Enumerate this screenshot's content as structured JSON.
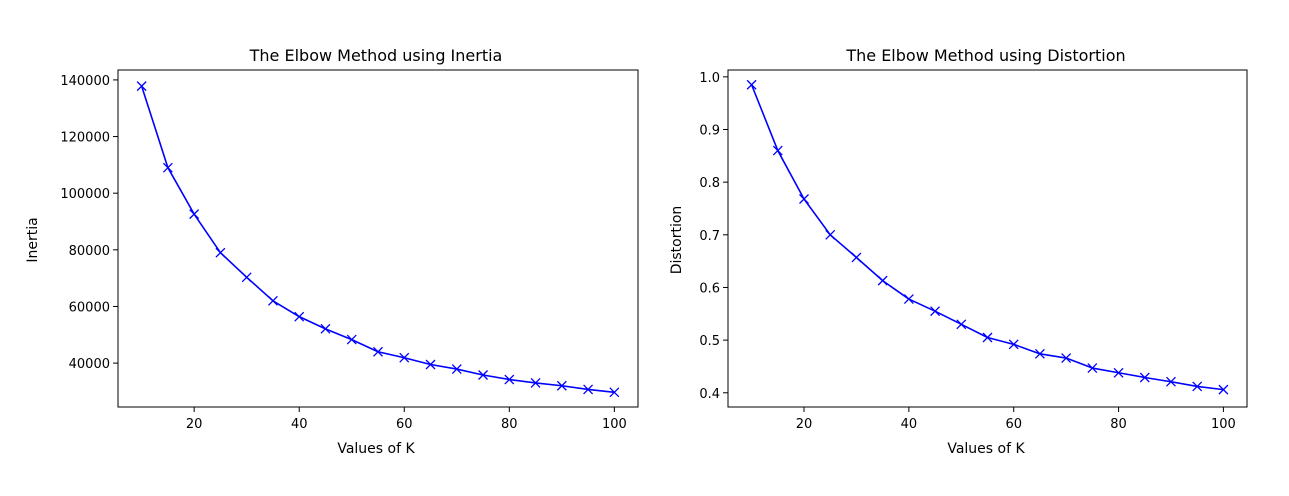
{
  "chart_data": [
    {
      "type": "line",
      "title": "The Elbow Method using Inertia",
      "xlabel": "Values of K",
      "ylabel": "Inertia",
      "xlim": [
        5.5,
        104.5
      ],
      "ylim": [
        24500,
        143500
      ],
      "xticks": [
        20,
        40,
        60,
        80,
        100
      ],
      "yticks": [
        40000,
        60000,
        80000,
        100000,
        120000,
        140000
      ],
      "grid": false,
      "line_color": "#0000ff",
      "marker": "x",
      "x": [
        10,
        15,
        20,
        25,
        30,
        35,
        40,
        45,
        50,
        55,
        60,
        65,
        70,
        75,
        80,
        85,
        90,
        95,
        100
      ],
      "values": [
        137800,
        109000,
        92600,
        79000,
        70300,
        62000,
        56400,
        52100,
        48300,
        44000,
        41900,
        39500,
        37900,
        35800,
        34200,
        33000,
        32000,
        30700,
        29700
      ]
    },
    {
      "type": "line",
      "title": "The Elbow Method using Distortion",
      "xlabel": "Values of K",
      "ylabel": "Distortion",
      "xlim": [
        5.5,
        104.5
      ],
      "ylim": [
        0.373,
        1.013
      ],
      "xticks": [
        20,
        40,
        60,
        80,
        100
      ],
      "yticks": [
        0.4,
        0.5,
        0.6,
        0.7,
        0.8,
        0.9,
        1.0
      ],
      "grid": false,
      "line_color": "#0000ff",
      "marker": "x",
      "x": [
        10,
        15,
        20,
        25,
        30,
        35,
        40,
        45,
        50,
        55,
        60,
        65,
        70,
        75,
        80,
        85,
        90,
        95,
        100
      ],
      "values": [
        0.985,
        0.86,
        0.768,
        0.7,
        0.657,
        0.613,
        0.578,
        0.555,
        0.53,
        0.505,
        0.492,
        0.474,
        0.466,
        0.447,
        0.438,
        0.429,
        0.421,
        0.412,
        0.406
      ]
    }
  ]
}
